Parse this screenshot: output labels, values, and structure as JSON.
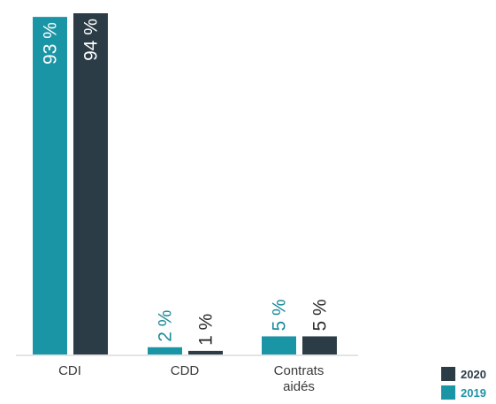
{
  "chart_data": {
    "type": "bar",
    "categories": [
      [
        "CDI"
      ],
      [
        "CDD"
      ],
      [
        "Contrats",
        "aidés"
      ]
    ],
    "series": [
      {
        "name": "2019",
        "values": [
          93,
          2,
          5
        ],
        "labels": [
          "93 %",
          "2 %",
          "5 %"
        ]
      },
      {
        "name": "2020",
        "values": [
          94,
          1,
          5
        ],
        "labels": [
          "94 %",
          "1 %",
          "5 %"
        ]
      }
    ],
    "ylim": [
      0,
      100
    ],
    "grid": false,
    "legend_placement": "bottom-right",
    "label_orientation": "rotated-vertical"
  },
  "colors": {
    "series_2019": "#1a95a6",
    "series_2020": "#2c3c47",
    "label_2019": "#1a8a99",
    "label_2019_inside": "#ffffff",
    "label_2020": "#2b2b2b",
    "label_2020_inside": "#ffffff",
    "axis": "#c8c8c8"
  },
  "legend": [
    {
      "label": "2020",
      "series": "2020"
    },
    {
      "label": "2019",
      "series": "2019"
    }
  ]
}
